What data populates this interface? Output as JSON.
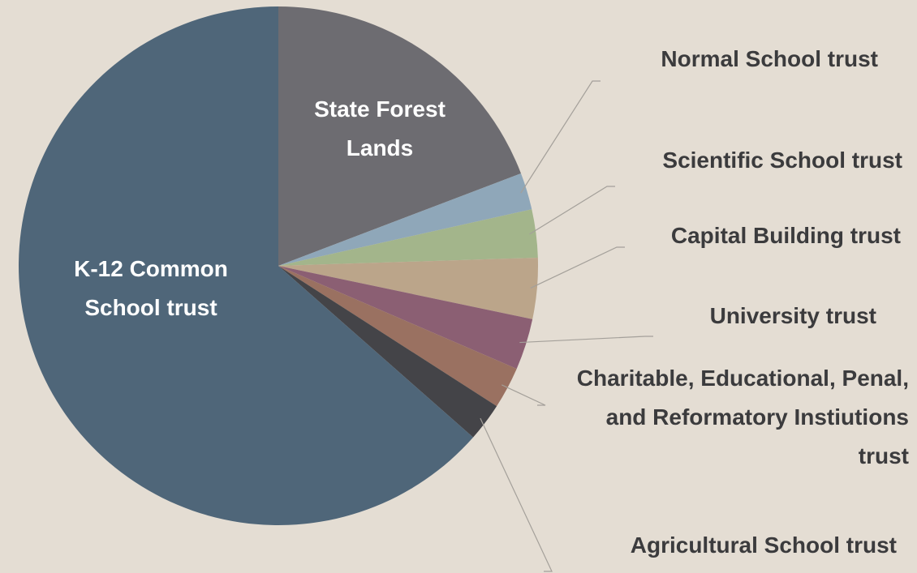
{
  "chart_data": {
    "type": "pie",
    "categories": [
      "State Forest Lands",
      "Normal School trust",
      "Scientific School trust",
      "Capital Building trust",
      "University trust",
      "Charitable, Educational, Penal, and Reformatory Instiutions trust",
      "Agricultural School trust",
      "K-12 Common School trust"
    ],
    "values": [
      19.2,
      2.3,
      3.0,
      3.8,
      3.2,
      2.6,
      2.4,
      63.5
    ],
    "colors": [
      "#6d6c71",
      "#8fa7b9",
      "#a3b58b",
      "#bba58a",
      "#8b5f73",
      "#9a7161",
      "#444448",
      "#4f6679"
    ]
  }
}
